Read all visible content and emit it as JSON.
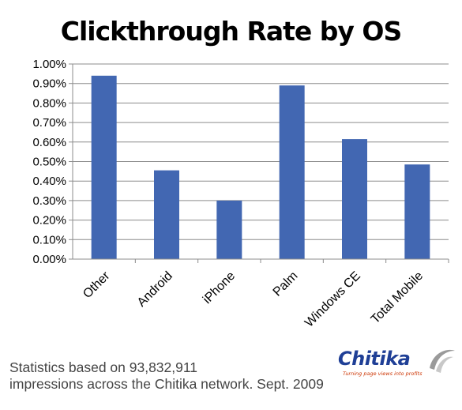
{
  "chart_data": {
    "type": "bar",
    "title": "Clickthrough Rate by OS",
    "categories": [
      "Other",
      "Android",
      "iPhone",
      "Palm",
      "Windows CE",
      "Total Mobile"
    ],
    "values": [
      0.94,
      0.455,
      0.3,
      0.89,
      0.615,
      0.485
    ],
    "value_unit": "%",
    "ylim": [
      0,
      1.0
    ],
    "yticks": [
      "0.00%",
      "0.10%",
      "0.20%",
      "0.30%",
      "0.40%",
      "0.50%",
      "0.60%",
      "0.70%",
      "0.80%",
      "0.90%",
      "1.00%"
    ],
    "xlabel": "",
    "ylabel": "",
    "grid": true,
    "legend": "none",
    "bar_color": "#4267b2"
  },
  "caption": {
    "line1": "Statistics based on 93,832,911",
    "line2": "impressions across the Chitika network. Sept. 2009"
  },
  "logo": {
    "name": "Chitika",
    "tagline": "Turning page views into profits"
  }
}
